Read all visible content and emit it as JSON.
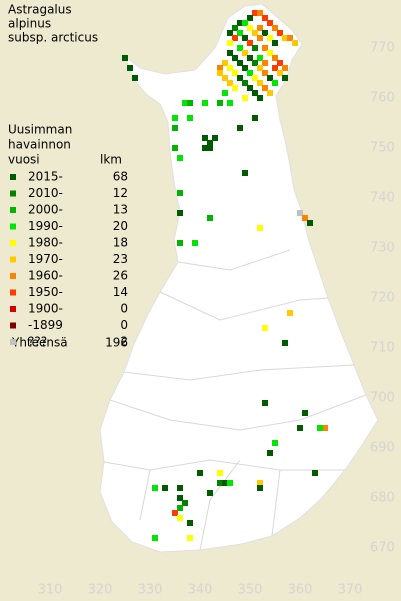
{
  "title": [
    "Astragalus",
    "alpinus",
    "subsp. arcticus"
  ],
  "legend": {
    "header": [
      "Uusimman",
      "havainnon",
      "vuosi"
    ],
    "count_header": "lkm",
    "items": [
      {
        "label": "2015-",
        "count": 68,
        "color": "#005a00"
      },
      {
        "label": "2010-",
        "count": 12,
        "color": "#008200"
      },
      {
        "label": "2000-",
        "count": 13,
        "color": "#00b400"
      },
      {
        "label": "1990-",
        "count": 20,
        "color": "#00e600"
      },
      {
        "label": "1980-",
        "count": 18,
        "color": "#ffff00"
      },
      {
        "label": "1970-",
        "count": 23,
        "color": "#ffc800"
      },
      {
        "label": "1960-",
        "count": 26,
        "color": "#ff8200"
      },
      {
        "label": "1950-",
        "count": 14,
        "color": "#ff3c00"
      },
      {
        "label": "1900-",
        "count": 0,
        "color": "#d20000"
      },
      {
        "label": "-1899",
        "count": 0,
        "color": "#820000"
      },
      {
        "label": "???",
        "count": 2,
        "color": "#c0c0c0"
      }
    ],
    "total_label": "Yhteensä",
    "total": 196
  },
  "xticks": [
    310,
    320,
    330,
    340,
    350,
    360,
    370
  ],
  "yticks": [
    770,
    760,
    750,
    740,
    730,
    720,
    710,
    700,
    690,
    680,
    670
  ],
  "squares": [
    [
      325,
      768,
      0
    ],
    [
      326,
      766,
      0
    ],
    [
      327,
      764,
      0
    ],
    [
      337,
      759,
      3
    ],
    [
      338,
      759,
      2
    ],
    [
      341,
      759,
      3
    ],
    [
      344,
      759,
      2
    ],
    [
      346,
      759,
      3
    ],
    [
      335,
      756,
      3
    ],
    [
      335,
      754,
      2
    ],
    [
      338,
      756,
      3
    ],
    [
      335,
      750,
      2
    ],
    [
      336,
      748,
      3
    ],
    [
      341,
      752,
      0
    ],
    [
      342,
      751,
      0
    ],
    [
      343,
      752,
      0
    ],
    [
      341,
      750,
      0
    ],
    [
      342,
      750,
      0
    ],
    [
      348,
      754,
      0
    ],
    [
      351,
      756,
      0
    ],
    [
      349,
      745,
      0
    ],
    [
      336,
      741,
      2
    ],
    [
      336,
      737,
      0
    ],
    [
      342,
      736,
      2
    ],
    [
      339,
      731,
      3
    ],
    [
      336,
      731,
      2
    ],
    [
      352,
      734,
      4
    ],
    [
      360,
      737,
      10
    ],
    [
      361,
      736,
      6
    ],
    [
      362,
      735,
      0
    ],
    [
      358,
      717,
      5
    ],
    [
      353,
      714,
      4
    ],
    [
      357,
      711,
      0
    ],
    [
      353,
      699,
      0
    ],
    [
      361,
      697,
      0
    ],
    [
      360,
      694,
      0
    ],
    [
      365,
      694,
      6
    ],
    [
      364,
      694,
      3
    ],
    [
      355,
      691,
      3
    ],
    [
      354,
      689,
      0
    ],
    [
      363,
      685,
      0
    ],
    [
      344,
      685,
      4
    ],
    [
      344,
      683,
      1
    ],
    [
      345,
      683,
      0
    ],
    [
      352,
      683,
      5
    ],
    [
      352,
      682,
      0
    ],
    [
      340,
      685,
      0
    ],
    [
      331,
      682,
      3
    ],
    [
      333,
      682,
      0
    ],
    [
      336,
      682,
      0
    ],
    [
      336,
      680,
      0
    ],
    [
      337,
      679,
      1
    ],
    [
      336,
      678,
      2
    ],
    [
      335,
      677,
      7
    ],
    [
      336,
      676,
      4
    ],
    [
      338,
      675,
      0
    ],
    [
      331,
      672,
      3
    ],
    [
      338,
      672,
      4
    ],
    [
      342,
      681,
      0
    ],
    [
      346,
      683,
      3
    ],
    [
      351,
      777,
      7
    ],
    [
      352,
      777,
      6
    ],
    [
      350,
      776,
      0
    ],
    [
      353,
      776,
      7
    ],
    [
      348,
      775,
      0
    ],
    [
      349,
      775,
      3
    ],
    [
      354,
      775,
      7
    ],
    [
      347,
      774,
      1
    ],
    [
      350,
      774,
      4
    ],
    [
      352,
      774,
      6
    ],
    [
      355,
      774,
      6
    ],
    [
      346,
      773,
      0
    ],
    [
      348,
      773,
      3
    ],
    [
      351,
      773,
      5
    ],
    [
      353,
      773,
      0
    ],
    [
      356,
      773,
      7
    ],
    [
      357,
      772,
      5
    ],
    [
      347,
      772,
      7
    ],
    [
      349,
      772,
      0
    ],
    [
      352,
      772,
      6
    ],
    [
      354,
      772,
      4
    ],
    [
      358,
      772,
      6
    ],
    [
      346,
      771,
      4
    ],
    [
      350,
      771,
      7
    ],
    [
      355,
      771,
      0
    ],
    [
      359,
      771,
      5
    ],
    [
      348,
      770,
      3
    ],
    [
      351,
      770,
      1
    ],
    [
      353,
      770,
      6
    ],
    [
      346,
      769,
      0
    ],
    [
      349,
      769,
      5
    ],
    [
      354,
      769,
      4
    ],
    [
      347,
      768,
      0
    ],
    [
      350,
      768,
      0
    ],
    [
      352,
      768,
      3
    ],
    [
      355,
      768,
      6
    ],
    [
      345,
      767,
      5
    ],
    [
      348,
      767,
      0
    ],
    [
      351,
      767,
      1
    ],
    [
      353,
      767,
      6
    ],
    [
      356,
      767,
      7
    ],
    [
      344,
      766,
      6
    ],
    [
      346,
      766,
      4
    ],
    [
      349,
      766,
      0
    ],
    [
      352,
      766,
      5
    ],
    [
      355,
      766,
      7
    ],
    [
      357,
      766,
      6
    ],
    [
      344,
      765,
      5
    ],
    [
      347,
      765,
      4
    ],
    [
      350,
      765,
      3
    ],
    [
      353,
      765,
      6
    ],
    [
      356,
      765,
      5
    ],
    [
      345,
      764,
      5
    ],
    [
      348,
      764,
      0
    ],
    [
      351,
      764,
      4
    ],
    [
      354,
      764,
      0
    ],
    [
      357,
      764,
      0
    ],
    [
      346,
      763,
      5
    ],
    [
      349,
      763,
      1
    ],
    [
      352,
      763,
      5
    ],
    [
      355,
      763,
      3
    ],
    [
      350,
      762,
      0
    ],
    [
      353,
      762,
      6
    ],
    [
      347,
      762,
      4
    ],
    [
      351,
      761,
      0
    ],
    [
      354,
      761,
      5
    ],
    [
      345,
      761,
      3
    ],
    [
      349,
      760,
      4
    ],
    [
      352,
      760,
      0
    ]
  ]
}
